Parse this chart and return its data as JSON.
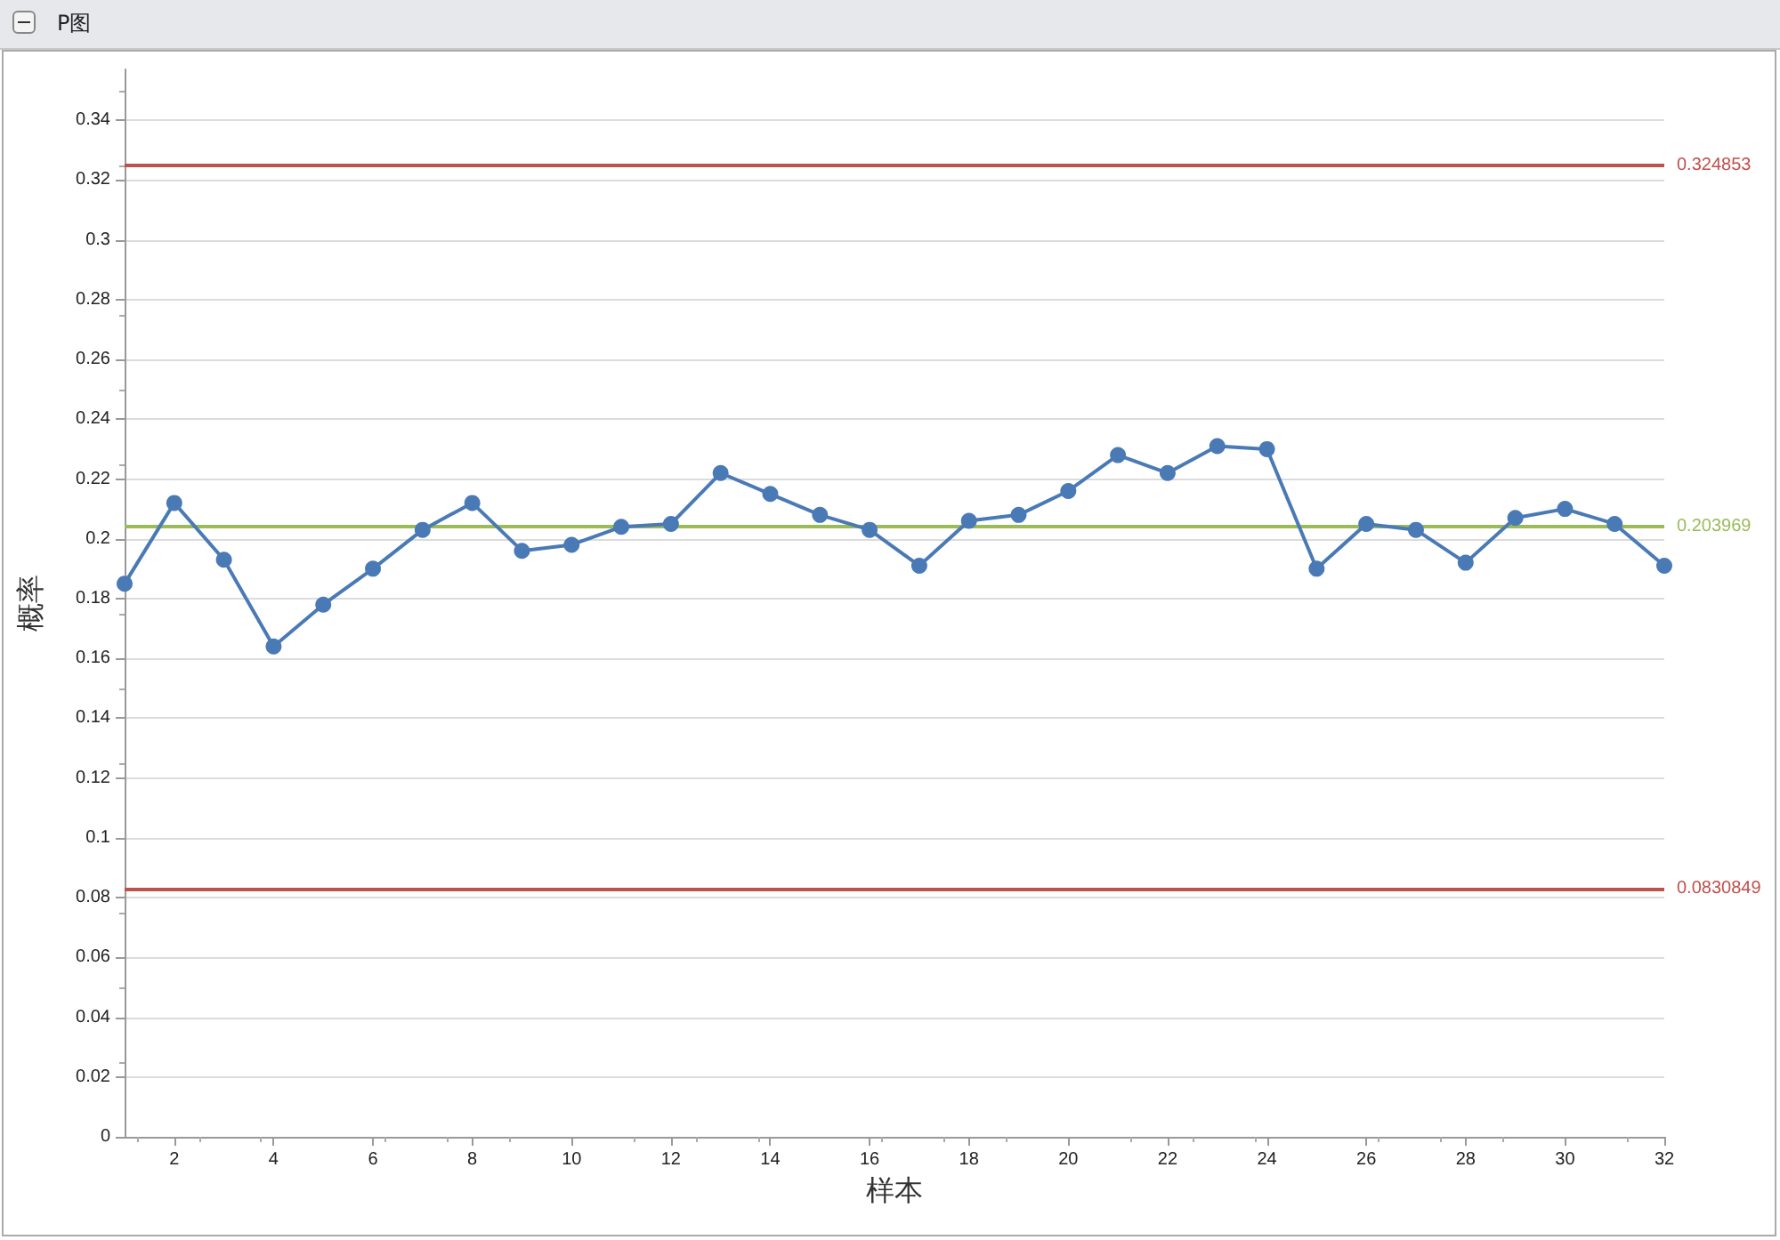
{
  "chart_data": {
    "type": "line",
    "title": "P图",
    "xlabel": "样本",
    "ylabel": "概率",
    "x": [
      1,
      2,
      3,
      4,
      5,
      6,
      7,
      8,
      9,
      10,
      11,
      12,
      13,
      14,
      15,
      16,
      17,
      18,
      19,
      20,
      21,
      22,
      23,
      24,
      25,
      26,
      27,
      28,
      29,
      30,
      31,
      32
    ],
    "series": [
      {
        "color": "#4a7ab5",
        "values": [
          0.185,
          0.212,
          0.193,
          0.164,
          0.178,
          0.19,
          0.203,
          0.212,
          0.196,
          0.198,
          0.204,
          0.205,
          0.222,
          0.215,
          0.208,
          0.203,
          0.191,
          0.206,
          0.208,
          0.216,
          0.228,
          0.222,
          0.231,
          0.23,
          0.19,
          0.205,
          0.203,
          0.192,
          0.207,
          0.21,
          0.205,
          0.191
        ]
      }
    ],
    "xlim": [
      1,
      32
    ],
    "xticks": [
      2,
      4,
      6,
      8,
      10,
      12,
      14,
      16,
      18,
      20,
      22,
      24,
      26,
      28,
      30,
      32
    ],
    "ylim": [
      0,
      0.357
    ],
    "yticks": [
      0,
      0.02,
      0.04,
      0.06,
      0.08,
      0.1,
      0.12,
      0.14,
      0.16,
      0.18,
      0.2,
      0.22,
      0.24,
      0.26,
      0.28,
      0.3,
      0.32,
      0.34
    ],
    "ref_lines": [
      {
        "axis": "y",
        "value": 0.324853,
        "label": "0.324853",
        "color": "#c0504d"
      },
      {
        "axis": "y",
        "value": 0.203969,
        "label": "0.203969",
        "color": "#9bbb59"
      },
      {
        "axis": "y",
        "value": 0.0830849,
        "label": "0.0830849",
        "color": "#c0504d"
      }
    ],
    "grid": "y",
    "marker": "circle",
    "line_style": "solid"
  }
}
